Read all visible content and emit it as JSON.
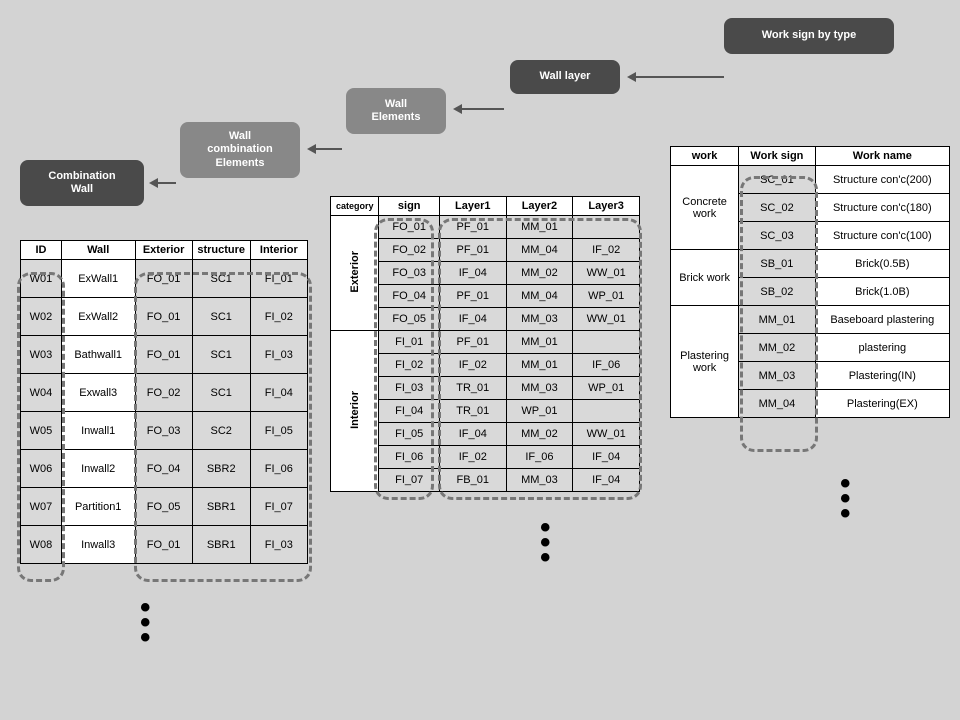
{
  "labels": {
    "work_sign_type": "Work sign by type",
    "wall_layer": "Wall layer",
    "wall_elements": "Wall\nElements",
    "wall_combo": "Wall\ncombination\nElements",
    "combo_wall": "Combination\nWall"
  },
  "colors": {
    "bg": "#d3d3d3",
    "dark": "#4a4a4a",
    "gray": "#888888",
    "shaded": "#d9d9d9",
    "border": "#000000",
    "dash": "#777777"
  },
  "table1": {
    "headers": [
      "ID",
      "Wall",
      "Exterior",
      "structure",
      "Interior"
    ],
    "rows": [
      [
        "W01",
        "ExWall1",
        "FO_01",
        "SC1",
        "FI_01"
      ],
      [
        "W02",
        "ExWall2",
        "FO_01",
        "SC1",
        "FI_02"
      ],
      [
        "W03",
        "Bathwall1",
        "FO_01",
        "SC1",
        "FI_03"
      ],
      [
        "W04",
        "Exwall3",
        "FO_02",
        "SC1",
        "FI_04"
      ],
      [
        "W05",
        "Inwall1",
        "FO_03",
        "SC2",
        "FI_05"
      ],
      [
        "W06",
        "Inwall2",
        "FO_04",
        "SBR2",
        "FI_06"
      ],
      [
        "W07",
        "Partition1",
        "FO_05",
        "SBR1",
        "FI_07"
      ],
      [
        "W08",
        "Inwall3",
        "FO_01",
        "SBR1",
        "FI_03"
      ]
    ]
  },
  "table2": {
    "headers": [
      "category",
      "sign",
      "Layer1",
      "Layer2",
      "Layer3"
    ],
    "cat1": "Exterior",
    "cat2": "Interior",
    "ext_rows": [
      [
        "FO_01",
        "PF_01",
        "MM_01",
        ""
      ],
      [
        "FO_02",
        "PF_01",
        "MM_04",
        "IF_02"
      ],
      [
        "FO_03",
        "IF_04",
        "MM_02",
        "WW_01"
      ],
      [
        "FO_04",
        "PF_01",
        "MM_04",
        "WP_01"
      ],
      [
        "FO_05",
        "IF_04",
        "MM_03",
        "WW_01"
      ]
    ],
    "int_rows": [
      [
        "FI_01",
        "PF_01",
        "MM_01",
        ""
      ],
      [
        "FI_02",
        "IF_02",
        "MM_01",
        "IF_06"
      ],
      [
        "FI_03",
        "TR_01",
        "MM_03",
        "WP_01"
      ],
      [
        "FI_04",
        "TR_01",
        "WP_01",
        ""
      ],
      [
        "FI_05",
        "IF_04",
        "MM_02",
        "WW_01"
      ],
      [
        "FI_06",
        "IF_02",
        "IF_06",
        "IF_04"
      ],
      [
        "FI_07",
        "FB_01",
        "MM_03",
        "IF_04"
      ]
    ]
  },
  "table3": {
    "headers": [
      "work",
      "Work sign",
      "Work name"
    ],
    "groups": [
      {
        "name": "Concrete work",
        "rows": [
          [
            "SC_01",
            "Structure con'c(200)"
          ],
          [
            "SC_02",
            "Structure con'c(180)"
          ],
          [
            "SC_03",
            "Structure con'c(100)"
          ]
        ]
      },
      {
        "name": "Brick work",
        "rows": [
          [
            "SB_01",
            "Brick(0.5B)"
          ],
          [
            "SB_02",
            "Brick(1.0B)"
          ]
        ]
      },
      {
        "name": "Plastering work",
        "rows": [
          [
            "MM_01",
            "Baseboard plastering"
          ],
          [
            "MM_02",
            "plastering"
          ],
          [
            "MM_03",
            "Plastering(IN)"
          ],
          [
            "MM_04",
            "Plastering(EX)"
          ]
        ]
      }
    ]
  }
}
